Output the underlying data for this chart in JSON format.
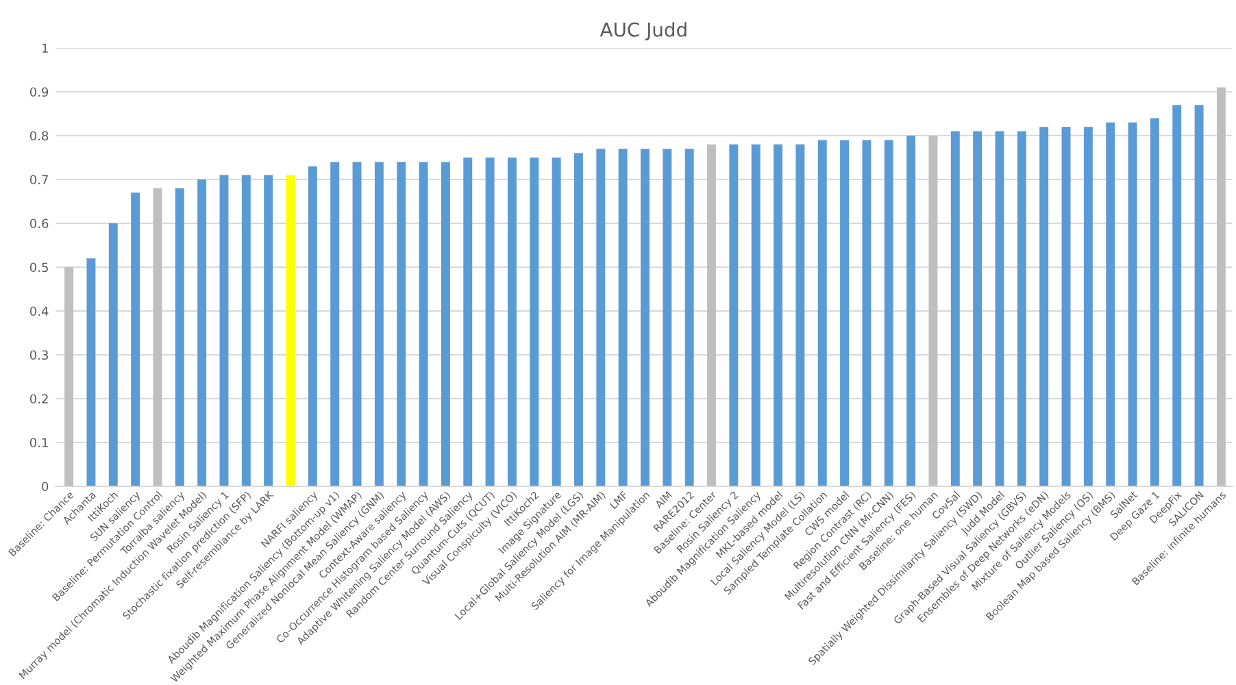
{
  "chart_data": {
    "type": "bar",
    "title": "AUC Judd",
    "categories": [
      "Baseline: Chance",
      "Achanta",
      "IttiKoch",
      "SUN saliency",
      "Baseline: Permutation Control",
      "Torralba saliency",
      "Murray model (Chromatic Induction Wavelet Model)",
      "Rosin Saliency 1",
      "Stochastic fixation prediction (SFP)",
      "Self-resemblance by LARK",
      null,
      "NARFI saliency",
      "Aboudib Magnification Saliency (Bottom-up v1)",
      "Weighted Maximum Phase Alignment Model (WMAP)",
      "Generalized Nonlocal Mean Saliency (GNM)",
      "Context-Aware saliency",
      "Co-Occurrence Histogram based Saliency",
      "Adaptive Whitening Saliency Model (AWS)",
      "Random Center Surround Saliency",
      "Quantum-Cuts (QCUT)",
      "Visual Conspicuity (VICO)",
      "IttiKoch2",
      "Image Signature",
      "Local+Global Saliency Model (LGS)",
      "Multi-Resolution AIM (MR-AIM)",
      "LMF",
      "Saliency for Image Manipulation",
      "AIM",
      "RARE2012",
      "Baseline: Center",
      "Rosin Saliency 2",
      "Aboudib Magnification Saliency",
      "MKL-based model",
      "Local Saliency Model (LS)",
      "Sampled Template Collation",
      "CWS model",
      "Region Contrast (RC)",
      "Multiresolution CNN (Mr-CNN)",
      "Fast and Efficient Saliency (FES)",
      "Baseline: one human",
      "CovSal",
      "Spatially Weighted Dissimilarity Saliency (SWD)",
      "Judd Model",
      "Graph-Based Visual Saliency (GBVS)",
      "Ensembles of Deep Networks (eDN)",
      "Mixture of Saliency Models",
      "Outlier Saliency (OS)",
      "Boolean Map based Saliency (BMS)",
      "SalNet",
      "Deep Gaze 1",
      "DeepFix",
      "SALICON",
      "Baseline: infinite humans"
    ],
    "values": [
      0.5,
      0.52,
      0.6,
      0.67,
      0.68,
      0.68,
      0.7,
      0.71,
      0.71,
      0.71,
      0.71,
      0.73,
      0.74,
      0.74,
      0.74,
      0.74,
      0.74,
      0.74,
      0.75,
      0.75,
      0.75,
      0.75,
      0.75,
      0.76,
      0.77,
      0.77,
      0.77,
      0.77,
      0.77,
      0.78,
      0.78,
      0.78,
      0.78,
      0.78,
      0.79,
      0.79,
      0.79,
      0.79,
      0.8,
      0.8,
      0.81,
      0.81,
      0.81,
      0.81,
      0.82,
      0.82,
      0.82,
      0.83,
      0.83,
      0.84,
      0.87,
      0.87,
      0.91
    ],
    "colors": [
      "#bfbfbf",
      "#5b9bd5",
      "#5b9bd5",
      "#5b9bd5",
      "#bfbfbf",
      "#5b9bd5",
      "#5b9bd5",
      "#5b9bd5",
      "#5b9bd5",
      "#5b9bd5",
      "#ffff00",
      "#5b9bd5",
      "#5b9bd5",
      "#5b9bd5",
      "#5b9bd5",
      "#5b9bd5",
      "#5b9bd5",
      "#5b9bd5",
      "#5b9bd5",
      "#5b9bd5",
      "#5b9bd5",
      "#5b9bd5",
      "#5b9bd5",
      "#5b9bd5",
      "#5b9bd5",
      "#5b9bd5",
      "#5b9bd5",
      "#5b9bd5",
      "#5b9bd5",
      "#bfbfbf",
      "#5b9bd5",
      "#5b9bd5",
      "#5b9bd5",
      "#5b9bd5",
      "#5b9bd5",
      "#5b9bd5",
      "#5b9bd5",
      "#5b9bd5",
      "#5b9bd5",
      "#bfbfbf",
      "#5b9bd5",
      "#5b9bd5",
      "#5b9bd5",
      "#5b9bd5",
      "#5b9bd5",
      "#5b9bd5",
      "#5b9bd5",
      "#5b9bd5",
      "#5b9bd5",
      "#5b9bd5",
      "#5b9bd5",
      "#5b9bd5",
      "#bfbfbf"
    ],
    "ylim": [
      0,
      1
    ],
    "yticks": [
      0,
      0.1,
      0.2,
      0.3,
      0.4,
      0.5,
      0.6,
      0.7,
      0.8,
      0.9,
      1
    ],
    "grid": "y",
    "legend": false
  }
}
